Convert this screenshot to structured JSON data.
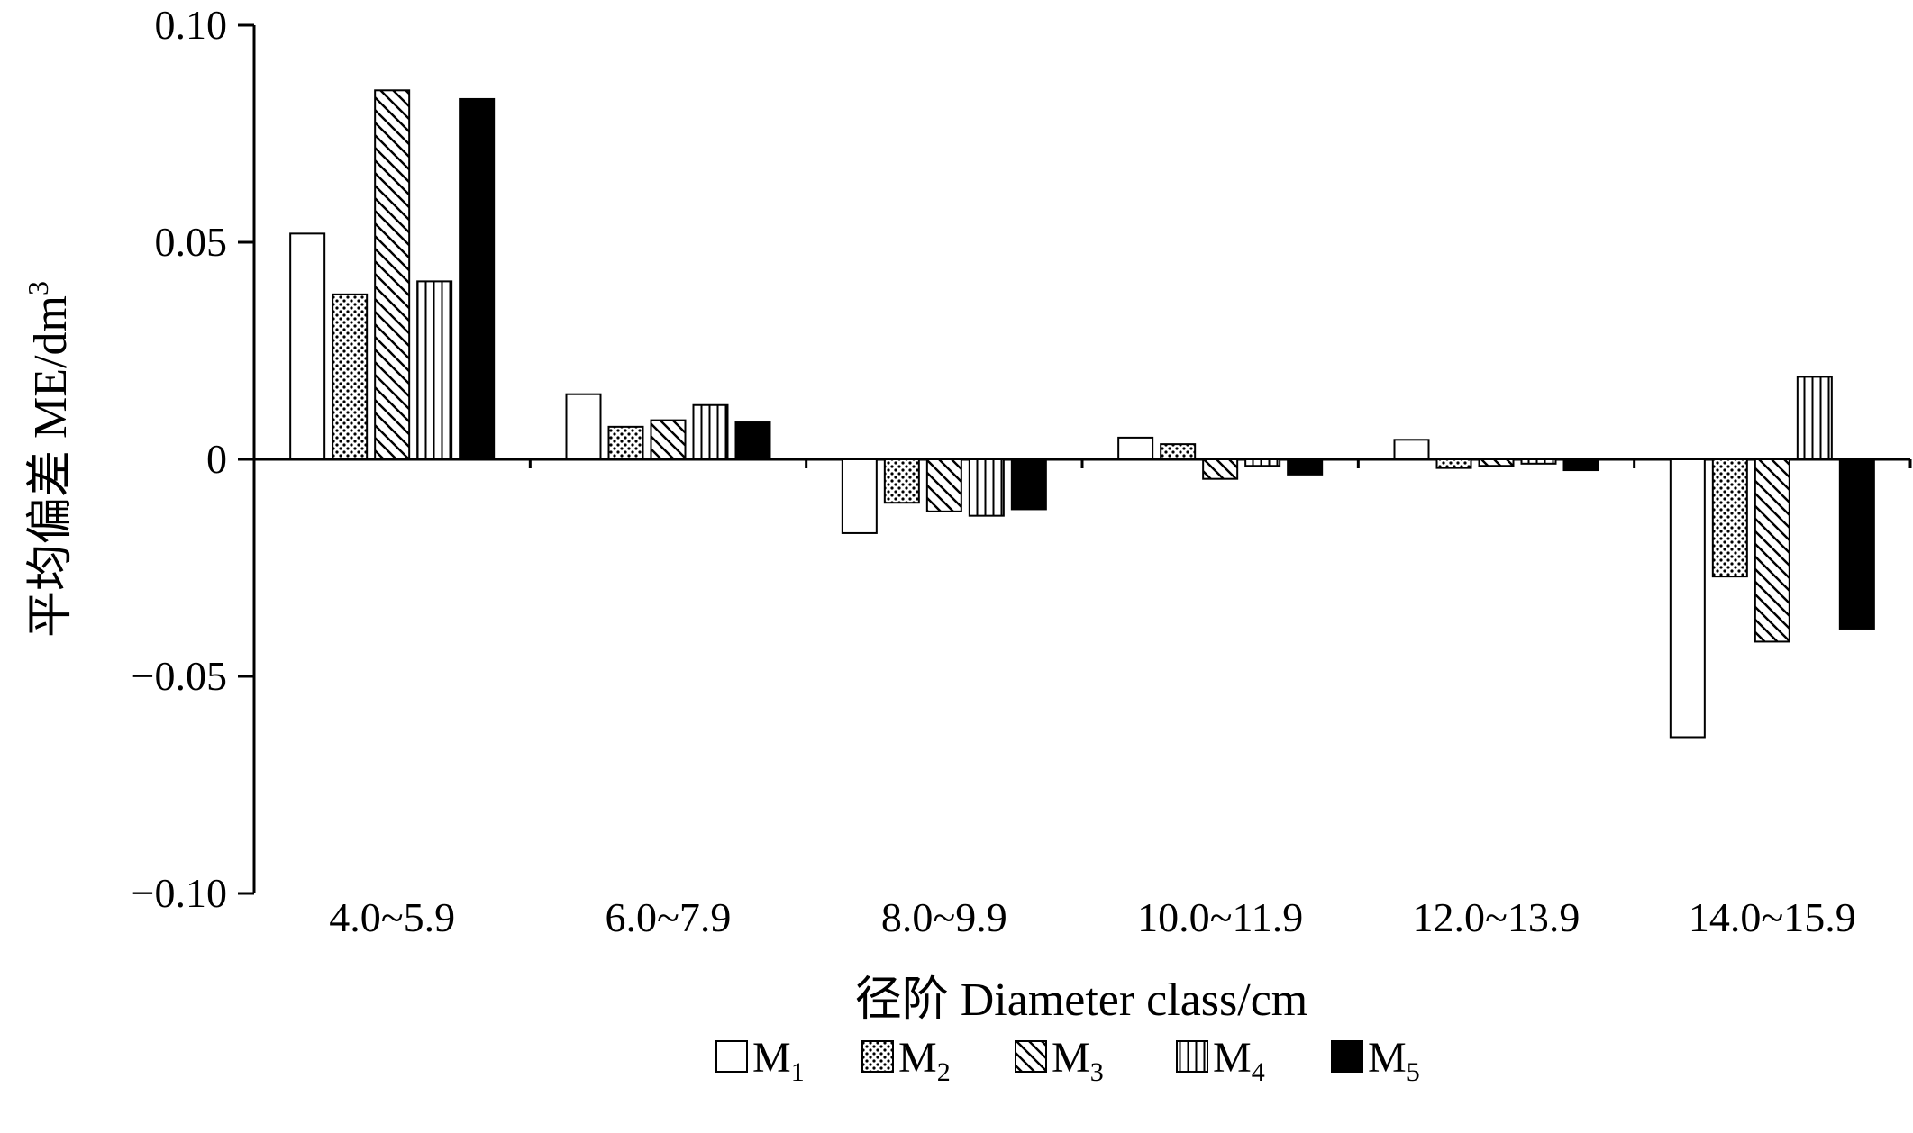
{
  "chart_data": {
    "type": "bar",
    "title": "",
    "xlabel": "径阶  Diameter class/cm",
    "ylabel": "平均偏差  ME/dm",
    "ylabel_superscript": "3",
    "ylim": [
      -0.1,
      0.1
    ],
    "yticks": [
      "0.10",
      "0.05",
      "0",
      "−0.05",
      "−0.10"
    ],
    "ytick_values": [
      0.1,
      0.05,
      0,
      -0.05,
      -0.1
    ],
    "categories": [
      "4.0~5.9",
      "6.0~7.9",
      "8.0~9.9",
      "10.0~11.9",
      "12.0~13.9",
      "14.0~15.9"
    ],
    "series": [
      {
        "name": "M1",
        "label": "M",
        "sub": "1",
        "pattern": "hollow",
        "values": [
          0.052,
          0.015,
          -0.017,
          0.005,
          0.0045,
          -0.064
        ]
      },
      {
        "name": "M2",
        "label": "M",
        "sub": "2",
        "pattern": "dots",
        "values": [
          0.038,
          0.0075,
          -0.01,
          0.0035,
          -0.002,
          -0.027
        ]
      },
      {
        "name": "M3",
        "label": "M",
        "sub": "3",
        "pattern": "diagonal",
        "values": [
          0.085,
          0.009,
          -0.012,
          -0.0045,
          -0.0015,
          -0.042
        ]
      },
      {
        "name": "M4",
        "label": "M",
        "sub": "4",
        "pattern": "vertical",
        "values": [
          0.041,
          0.0125,
          -0.013,
          -0.0015,
          -0.001,
          0.019
        ]
      },
      {
        "name": "M5",
        "label": "M",
        "sub": "5",
        "pattern": "solid",
        "values": [
          0.083,
          0.0085,
          -0.0115,
          -0.0035,
          -0.0025,
          -0.039
        ]
      }
    ],
    "legend_position": "bottom",
    "grid": false
  }
}
